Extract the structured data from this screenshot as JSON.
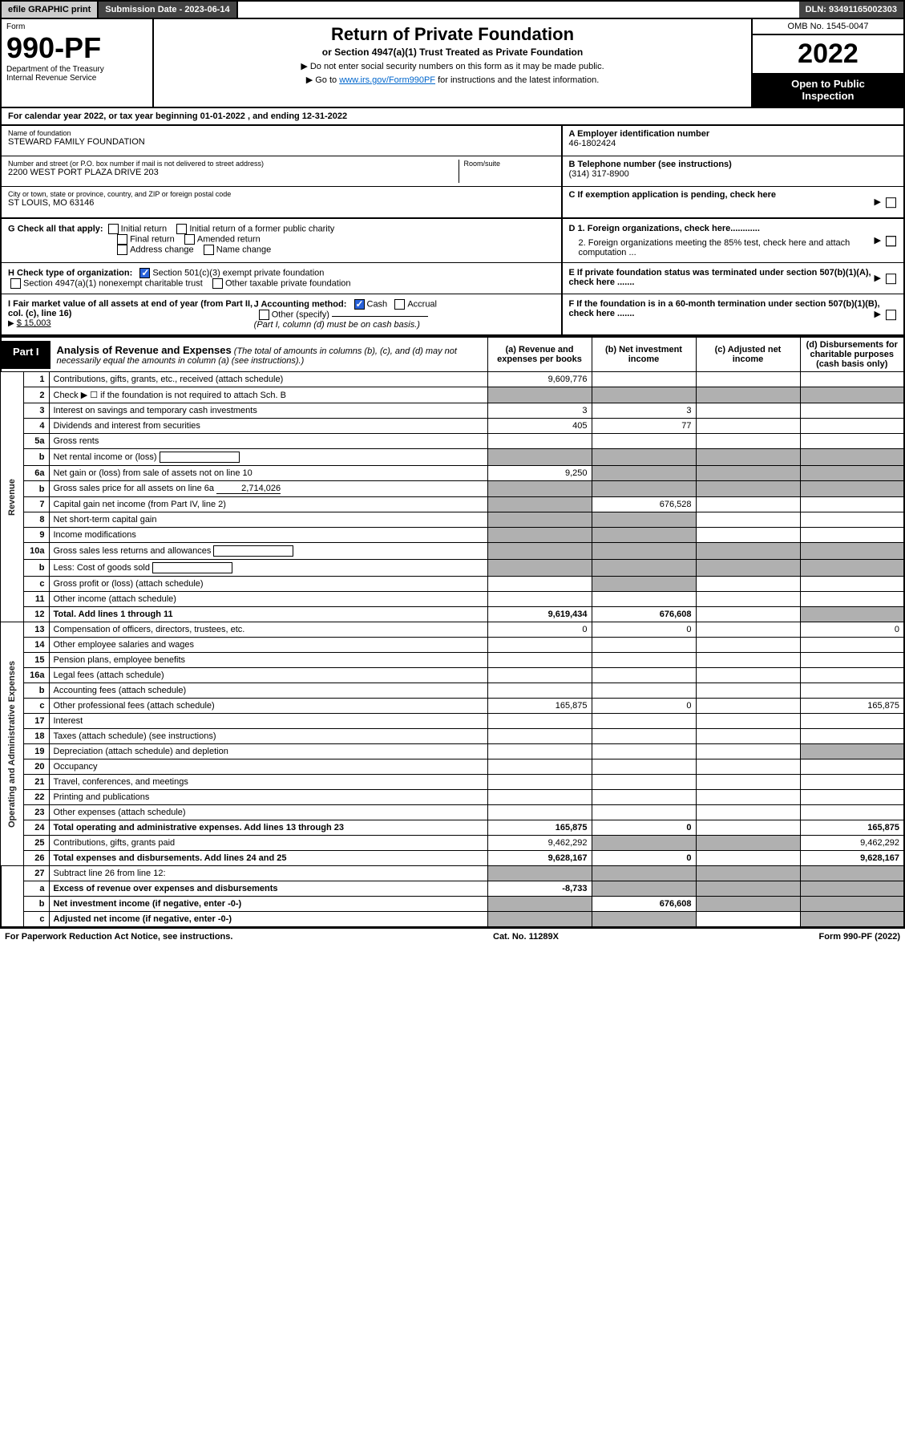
{
  "top_bar": {
    "efile": "efile GRAPHIC print",
    "submission_label": "Submission Date - 2023-06-14",
    "dln": "DLN: 93491165002303"
  },
  "header": {
    "form_word": "Form",
    "form_number": "990-PF",
    "dept": "Department of the Treasury",
    "irs": "Internal Revenue Service",
    "title": "Return of Private Foundation",
    "subtitle": "or Section 4947(a)(1) Trust Treated as Private Foundation",
    "note1": "▶ Do not enter social security numbers on this form as it may be made public.",
    "note2_prefix": "▶ Go to ",
    "note2_link": "www.irs.gov/Form990PF",
    "note2_suffix": " for instructions and the latest information.",
    "omb": "OMB No. 1545-0047",
    "year": "2022",
    "inspect1": "Open to Public",
    "inspect2": "Inspection"
  },
  "calendar": "For calendar year 2022, or tax year beginning 01-01-2022                  , and ending 12-31-2022",
  "info": {
    "name_label": "Name of foundation",
    "name": "STEWARD FAMILY FOUNDATION",
    "addr_label": "Number and street (or P.O. box number if mail is not delivered to street address)",
    "addr": "2200 WEST PORT PLAZA DRIVE 203",
    "room_label": "Room/suite",
    "city_label": "City or town, state or province, country, and ZIP or foreign postal code",
    "city": "ST LOUIS, MO  63146",
    "ein_label": "A Employer identification number",
    "ein": "46-1802424",
    "phone_label": "B Telephone number (see instructions)",
    "phone": "(314) 317-8900",
    "c_label": "C  If exemption application is pending, check here"
  },
  "checks": {
    "g_label": "G Check all that apply:",
    "g_opts": [
      "Initial return",
      "Initial return of a former public charity",
      "Final return",
      "Amended return",
      "Address change",
      "Name change"
    ],
    "h_label": "H Check type of organization:",
    "h_opt1": "Section 501(c)(3) exempt private foundation",
    "h_opt2": "Section 4947(a)(1) nonexempt charitable trust",
    "h_opt3": "Other taxable private foundation",
    "i_label": "I Fair market value of all assets at end of year (from Part II, col. (c), line 16)",
    "i_val": "$  15,003",
    "j_label": "J Accounting method:",
    "j_opt1": "Cash",
    "j_opt2": "Accrual",
    "j_opt3": "Other (specify)",
    "j_note": "(Part I, column (d) must be on cash basis.)",
    "d1": "D 1. Foreign organizations, check here............",
    "d2": "2. Foreign organizations meeting the 85% test, check here and attach computation ...",
    "e_label": "E  If private foundation status was terminated under section 507(b)(1)(A), check here .......",
    "f_label": "F  If the foundation is in a 60-month termination under section 507(b)(1)(B), check here ......."
  },
  "part1": {
    "tab": "Part I",
    "title": "Analysis of Revenue and Expenses",
    "title_note": "(The total of amounts in columns (b), (c), and (d) may not necessarily equal the amounts in column (a) (see instructions).)",
    "col_a": "(a)  Revenue and expenses per books",
    "col_b": "(b)  Net investment income",
    "col_c": "(c)  Adjusted net income",
    "col_d": "(d)  Disbursements for charitable purposes (cash basis only)"
  },
  "side_labels": {
    "revenue": "Revenue",
    "expenses": "Operating and Administrative Expenses"
  },
  "rows": [
    {
      "n": "1",
      "desc": "Contributions, gifts, grants, etc., received (attach schedule)",
      "a": "9,609,776",
      "b": "",
      "c": "",
      "d": ""
    },
    {
      "n": "2",
      "desc": "Check ▶ ☐ if the foundation is not required to attach Sch. B",
      "a": "",
      "b": "",
      "c": "",
      "d": "",
      "shade_bcd": true,
      "shade_a": true
    },
    {
      "n": "3",
      "desc": "Interest on savings and temporary cash investments",
      "a": "3",
      "b": "3",
      "c": "",
      "d": ""
    },
    {
      "n": "4",
      "desc": "Dividends and interest from securities",
      "a": "405",
      "b": "77",
      "c": "",
      "d": ""
    },
    {
      "n": "5a",
      "desc": "Gross rents",
      "a": "",
      "b": "",
      "c": "",
      "d": ""
    },
    {
      "n": "b",
      "desc": "Net rental income or (loss)",
      "a": "",
      "b": "",
      "c": "",
      "d": "",
      "shade_all": true,
      "inline_box": true
    },
    {
      "n": "6a",
      "desc": "Net gain or (loss) from sale of assets not on line 10",
      "a": "9,250",
      "b": "",
      "c": "",
      "d": "",
      "shade_bcd": true
    },
    {
      "n": "b",
      "desc": "Gross sales price for all assets on line 6a",
      "inline_val": "2,714,026",
      "shade_all": true
    },
    {
      "n": "7",
      "desc": "Capital gain net income (from Part IV, line 2)",
      "a": "",
      "b": "676,528",
      "c": "",
      "d": "",
      "shade_a": true
    },
    {
      "n": "8",
      "desc": "Net short-term capital gain",
      "a": "",
      "b": "",
      "c": "",
      "d": "",
      "shade_ab": true
    },
    {
      "n": "9",
      "desc": "Income modifications",
      "a": "",
      "b": "",
      "c": "",
      "d": "",
      "shade_ab": true
    },
    {
      "n": "10a",
      "desc": "Gross sales less returns and allowances",
      "shade_all": true,
      "inline_box": true
    },
    {
      "n": "b",
      "desc": "Less: Cost of goods sold",
      "shade_all": true,
      "inline_box": true
    },
    {
      "n": "c",
      "desc": "Gross profit or (loss) (attach schedule)",
      "a": "",
      "b": "",
      "c": "",
      "d": "",
      "shade_b": true
    },
    {
      "n": "11",
      "desc": "Other income (attach schedule)",
      "a": "",
      "b": "",
      "c": "",
      "d": ""
    },
    {
      "n": "12",
      "desc": "Total. Add lines 1 through 11",
      "a": "9,619,434",
      "b": "676,608",
      "c": "",
      "d": "",
      "bold": true,
      "shade_d": true
    }
  ],
  "exp_rows": [
    {
      "n": "13",
      "desc": "Compensation of officers, directors, trustees, etc.",
      "a": "0",
      "b": "0",
      "c": "",
      "d": "0"
    },
    {
      "n": "14",
      "desc": "Other employee salaries and wages",
      "a": "",
      "b": "",
      "c": "",
      "d": ""
    },
    {
      "n": "15",
      "desc": "Pension plans, employee benefits",
      "a": "",
      "b": "",
      "c": "",
      "d": ""
    },
    {
      "n": "16a",
      "desc": "Legal fees (attach schedule)",
      "a": "",
      "b": "",
      "c": "",
      "d": ""
    },
    {
      "n": "b",
      "desc": "Accounting fees (attach schedule)",
      "a": "",
      "b": "",
      "c": "",
      "d": ""
    },
    {
      "n": "c",
      "desc": "Other professional fees (attach schedule)",
      "a": "165,875",
      "b": "0",
      "c": "",
      "d": "165,875"
    },
    {
      "n": "17",
      "desc": "Interest",
      "a": "",
      "b": "",
      "c": "",
      "d": ""
    },
    {
      "n": "18",
      "desc": "Taxes (attach schedule) (see instructions)",
      "a": "",
      "b": "",
      "c": "",
      "d": ""
    },
    {
      "n": "19",
      "desc": "Depreciation (attach schedule) and depletion",
      "a": "",
      "b": "",
      "c": "",
      "d": "",
      "shade_d": true
    },
    {
      "n": "20",
      "desc": "Occupancy",
      "a": "",
      "b": "",
      "c": "",
      "d": ""
    },
    {
      "n": "21",
      "desc": "Travel, conferences, and meetings",
      "a": "",
      "b": "",
      "c": "",
      "d": ""
    },
    {
      "n": "22",
      "desc": "Printing and publications",
      "a": "",
      "b": "",
      "c": "",
      "d": ""
    },
    {
      "n": "23",
      "desc": "Other expenses (attach schedule)",
      "a": "",
      "b": "",
      "c": "",
      "d": ""
    },
    {
      "n": "24",
      "desc": "Total operating and administrative expenses. Add lines 13 through 23",
      "a": "165,875",
      "b": "0",
      "c": "",
      "d": "165,875",
      "bold": true
    },
    {
      "n": "25",
      "desc": "Contributions, gifts, grants paid",
      "a": "9,462,292",
      "b": "",
      "c": "",
      "d": "9,462,292",
      "shade_bc": true
    },
    {
      "n": "26",
      "desc": "Total expenses and disbursements. Add lines 24 and 25",
      "a": "9,628,167",
      "b": "0",
      "c": "",
      "d": "9,628,167",
      "bold": true
    }
  ],
  "net_rows": [
    {
      "n": "27",
      "desc": "Subtract line 26 from line 12:",
      "shade_all": true
    },
    {
      "n": "a",
      "desc": "Excess of revenue over expenses and disbursements",
      "a": "-8,733",
      "shade_bcd": true,
      "bold": true
    },
    {
      "n": "b",
      "desc": "Net investment income (if negative, enter -0-)",
      "b": "676,608",
      "shade_a": true,
      "shade_cd": true,
      "bold": true
    },
    {
      "n": "c",
      "desc": "Adjusted net income (if negative, enter -0-)",
      "shade_ab": true,
      "shade_d": true,
      "bold": true
    }
  ],
  "footer": {
    "left": "For Paperwork Reduction Act Notice, see instructions.",
    "center": "Cat. No. 11289X",
    "right": "Form 990-PF (2022)"
  }
}
